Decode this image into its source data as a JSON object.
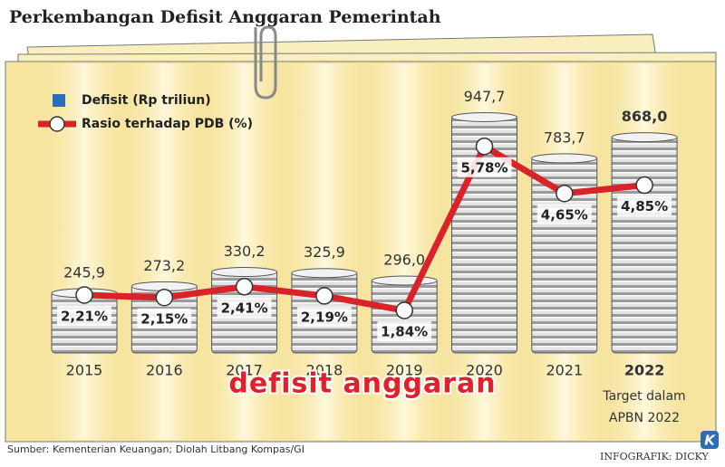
{
  "chart_data": {
    "type": "bar",
    "title": "Perkembangan Defisit Anggaran Pemerintah",
    "categories": [
      "2015",
      "2016",
      "2017",
      "2018",
      "2019",
      "2020",
      "2021",
      "2022"
    ],
    "series": [
      {
        "name": "Defisit (Rp triliun)",
        "color": "#2a6eb5",
        "values": [
          245.9,
          273.2,
          330.2,
          325.9,
          296.0,
          947.7,
          783.7,
          868.0
        ],
        "value_labels": [
          "245,9",
          "273,2",
          "330,2",
          "325,9",
          "296,0",
          "947,7",
          "783,7",
          "868,0"
        ]
      },
      {
        "name": "Rasio terhadap PDB (%)",
        "color": "#d9232a",
        "type": "line",
        "values": [
          2.21,
          2.15,
          2.41,
          2.19,
          1.84,
          5.78,
          4.65,
          4.85
        ],
        "value_labels": [
          "2,21%",
          "2,15%",
          "2,41%",
          "2,19%",
          "1,84%",
          "5,78%",
          "4,65%",
          "4,85%"
        ]
      }
    ],
    "annotation": [
      "Target dalam",
      "APBN 2022"
    ],
    "watermark": "defisit anggaran",
    "source": "Sumber: Kementerian Keuangan; Diolah Litbang Kompas/GI",
    "credit": "INFOGRAFIK: DICKY",
    "logo": "K"
  }
}
